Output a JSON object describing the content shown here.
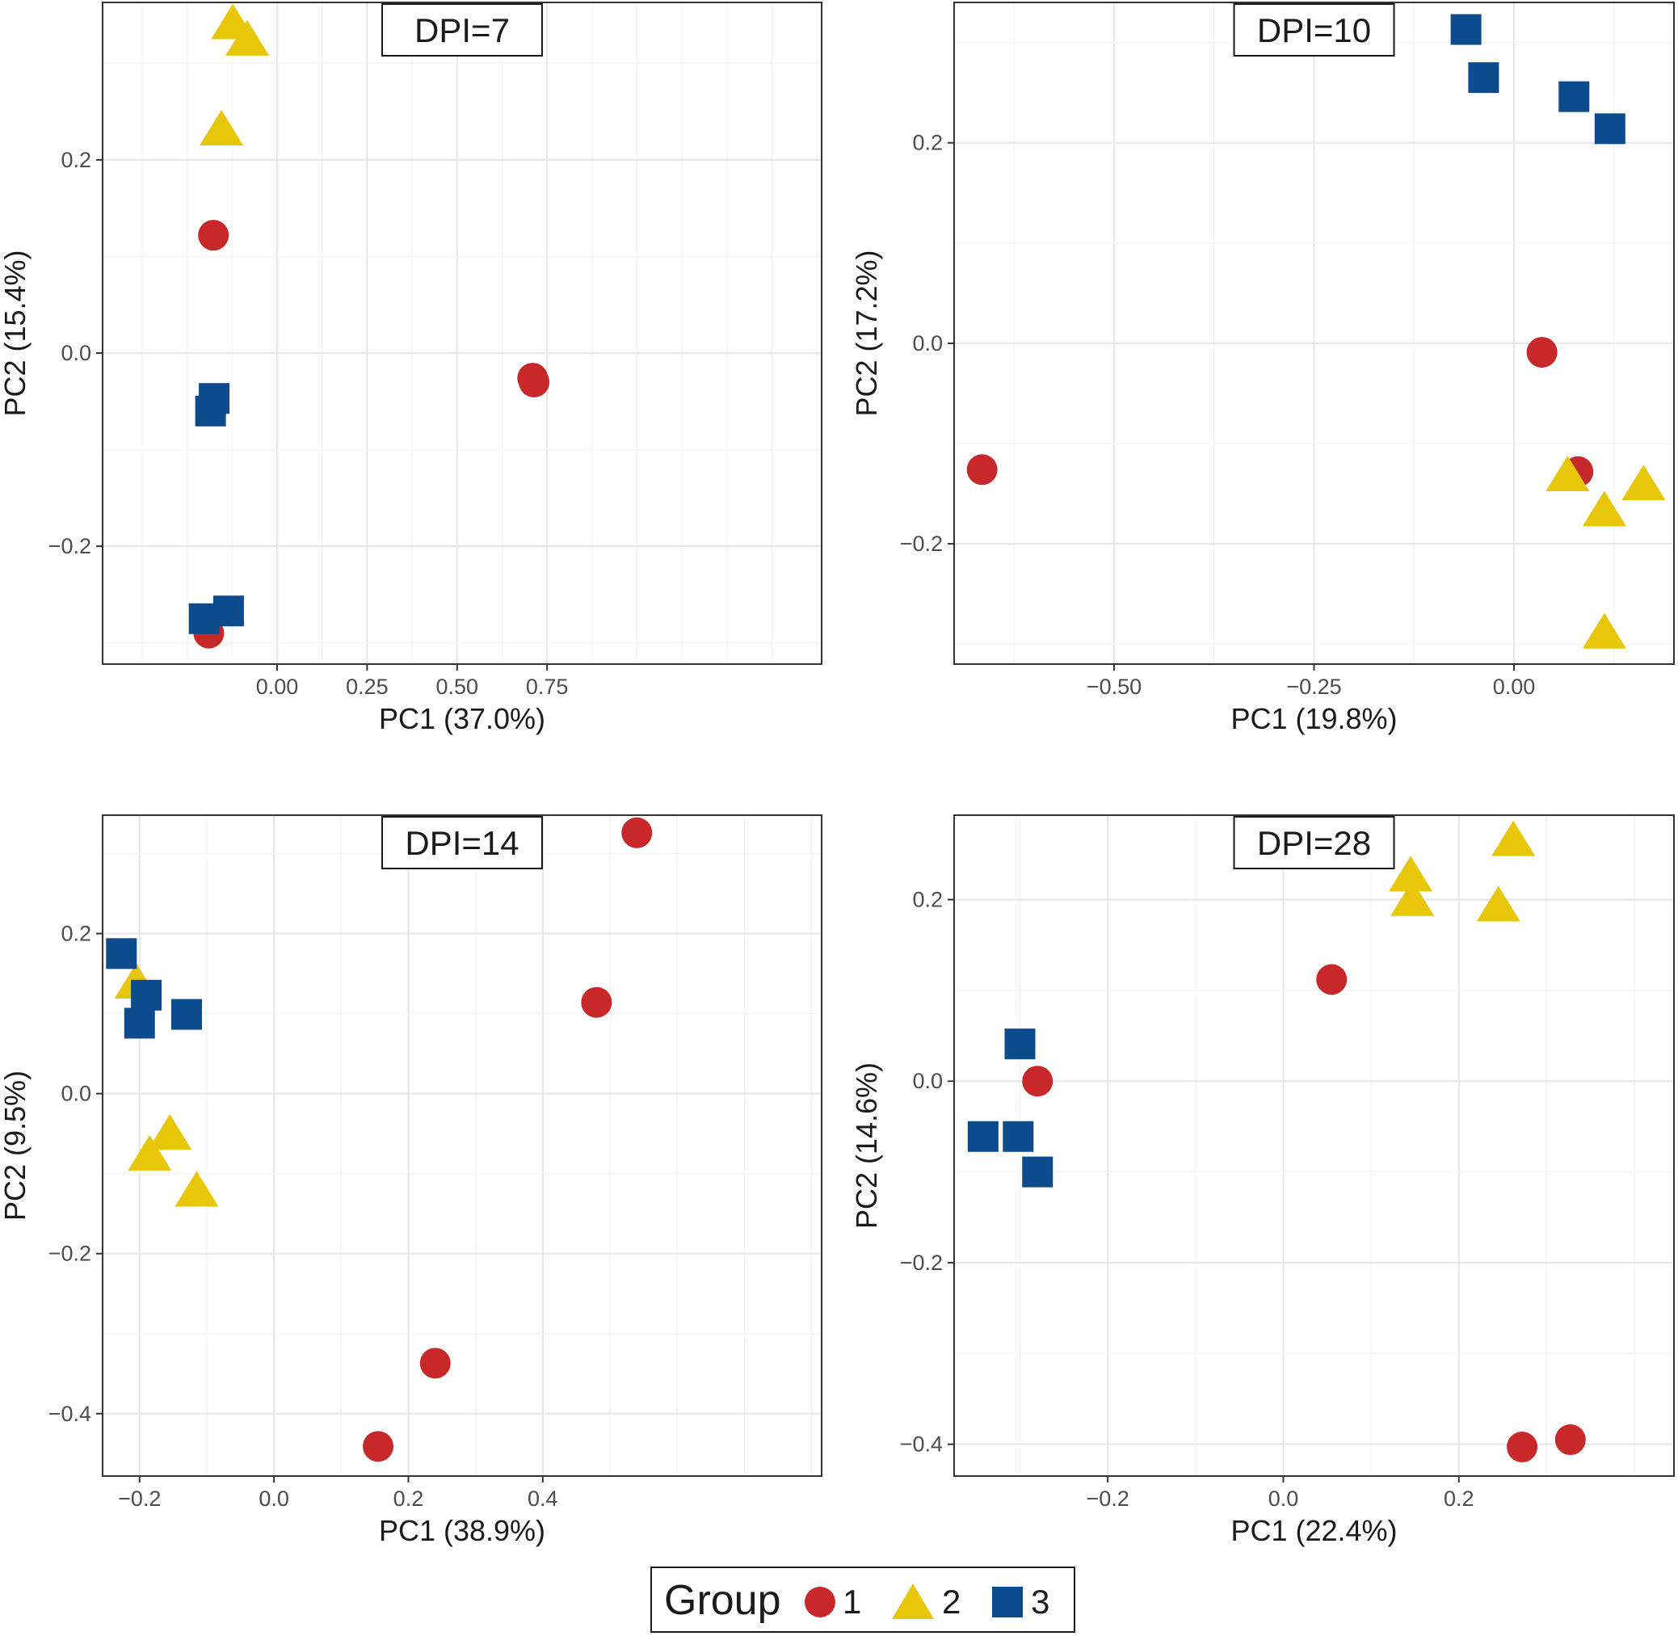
{
  "chart_data": [
    {
      "type": "scatter",
      "title": "DPI=7",
      "xlabel": "PC1 (37.0%)",
      "ylabel": "PC2 (15.4%)",
      "xlim": [
        -0.485,
        1.513
      ],
      "ylim": [
        -0.322,
        0.363
      ],
      "xticks": [
        0.0,
        0.25,
        0.5,
        0.75
      ],
      "xtick_labels": [
        "0.00",
        "0.25",
        "0.50",
        "0.75"
      ],
      "yticks": [
        -0.2,
        0.0,
        0.2
      ],
      "ytick_labels": [
        "−0.2",
        "0.0",
        "0.2"
      ],
      "series": [
        {
          "name": "1",
          "points": [
            [
              -0.177,
              0.122
            ],
            [
              0.71,
              -0.026
            ],
            [
              0.714,
              -0.03
            ],
            [
              -0.19,
              -0.29
            ]
          ]
        },
        {
          "name": "2",
          "points": [
            [
              -0.123,
              0.34
            ],
            [
              -0.083,
              0.323
            ],
            [
              -0.155,
              0.23
            ]
          ]
        },
        {
          "name": "3",
          "points": [
            [
              -0.175,
              -0.047
            ],
            [
              -0.185,
              -0.06
            ],
            [
              -0.203,
              -0.275
            ],
            [
              -0.135,
              -0.267
            ]
          ]
        }
      ]
    },
    {
      "type": "scatter",
      "title": "DPI=10",
      "xlabel": "PC1 (19.8%)",
      "ylabel": "PC2 (17.2%)",
      "xlim": [
        -0.7,
        0.2
      ],
      "ylim": [
        -0.32,
        0.34
      ],
      "xticks": [
        -0.5,
        -0.25,
        0.0
      ],
      "xtick_labels": [
        "−0.50",
        "−0.25",
        "0.00"
      ],
      "yticks": [
        -0.2,
        0.0,
        0.2
      ],
      "ytick_labels": [
        "−0.2",
        "0.0",
        "0.2"
      ],
      "series": [
        {
          "name": "1",
          "points": [
            [
              -0.665,
              -0.126
            ],
            [
              0.035,
              -0.009
            ],
            [
              0.08,
              -0.128
            ]
          ]
        },
        {
          "name": "2",
          "points": [
            [
              0.067,
              -0.133
            ],
            [
              0.113,
              -0.168
            ],
            [
              0.162,
              -0.142
            ],
            [
              0.113,
              -0.29
            ]
          ]
        },
        {
          "name": "3",
          "points": [
            [
              -0.06,
              0.313
            ],
            [
              -0.038,
              0.265
            ],
            [
              0.075,
              0.246
            ],
            [
              0.12,
              0.214
            ]
          ]
        }
      ]
    },
    {
      "type": "scatter",
      "title": "DPI=14",
      "xlabel": "PC1 (38.9%)",
      "ylabel": "PC2 (9.5%)",
      "xlim": [
        -0.255,
        0.815
      ],
      "ylim": [
        -0.478,
        0.348
      ],
      "xticks": [
        -0.2,
        0.0,
        0.2,
        0.4
      ],
      "xtick_labels": [
        "−0.2",
        "0.0",
        "0.2",
        "0.4"
      ],
      "yticks": [
        -0.4,
        -0.2,
        0.0,
        0.2
      ],
      "ytick_labels": [
        "−0.4",
        "−0.2",
        "0.0",
        "0.2"
      ],
      "series": [
        {
          "name": "1",
          "points": [
            [
              0.54,
              0.326
            ],
            [
              0.48,
              0.114
            ],
            [
              0.24,
              -0.337
            ],
            [
              0.155,
              -0.441
            ]
          ]
        },
        {
          "name": "2",
          "points": [
            [
              -0.205,
              0.137
            ],
            [
              -0.155,
              -0.052
            ],
            [
              -0.185,
              -0.078
            ],
            [
              -0.115,
              -0.123
            ]
          ]
        },
        {
          "name": "3",
          "points": [
            [
              -0.227,
              0.175
            ],
            [
              -0.19,
              0.123
            ],
            [
              -0.2,
              0.088
            ],
            [
              -0.13,
              0.099
            ]
          ]
        }
      ]
    },
    {
      "type": "scatter",
      "title": "DPI=28",
      "xlabel": "PC1 (22.4%)",
      "ylabel": "PC2 (14.6%)",
      "xlim": [
        -0.375,
        0.445
      ],
      "ylim": [
        -0.435,
        0.293
      ],
      "xticks": [
        -0.2,
        0.0,
        0.2
      ],
      "xtick_labels": [
        "−0.2",
        "0.0",
        "0.2"
      ],
      "yticks": [
        -0.4,
        -0.2,
        0.0,
        0.2
      ],
      "ytick_labels": [
        "−0.4",
        "−0.2",
        "0.0",
        "0.2"
      ],
      "series": [
        {
          "name": "1",
          "points": [
            [
              0.055,
              0.112
            ],
            [
              -0.28,
              0.0
            ],
            [
              0.272,
              -0.403
            ],
            [
              0.327,
              -0.395
            ]
          ]
        },
        {
          "name": "2",
          "points": [
            [
              0.145,
              0.225
            ],
            [
              0.147,
              0.198
            ],
            [
              0.262,
              0.264
            ],
            [
              0.245,
              0.192
            ]
          ]
        },
        {
          "name": "3",
          "points": [
            [
              -0.3,
              0.041
            ],
            [
              -0.342,
              -0.061
            ],
            [
              -0.302,
              -0.061
            ],
            [
              -0.28,
              -0.1
            ]
          ]
        }
      ]
    }
  ],
  "legend": {
    "title": "Group",
    "items": [
      {
        "label": "1",
        "shape": "circle",
        "color": "#c8282a"
      },
      {
        "label": "2",
        "shape": "triangle",
        "color": "#e8c60a"
      },
      {
        "label": "3",
        "shape": "square",
        "color": "#0d4c8c"
      }
    ]
  },
  "colors": {
    "1": "#c8282a",
    "2": "#e8c60a",
    "3": "#0d4c8c",
    "grid_major": "#e8e8e8",
    "grid_minor": "#f3f3f3",
    "panel_border": "#333333"
  },
  "shapes": {
    "1": "circle",
    "2": "triangle",
    "3": "square"
  }
}
